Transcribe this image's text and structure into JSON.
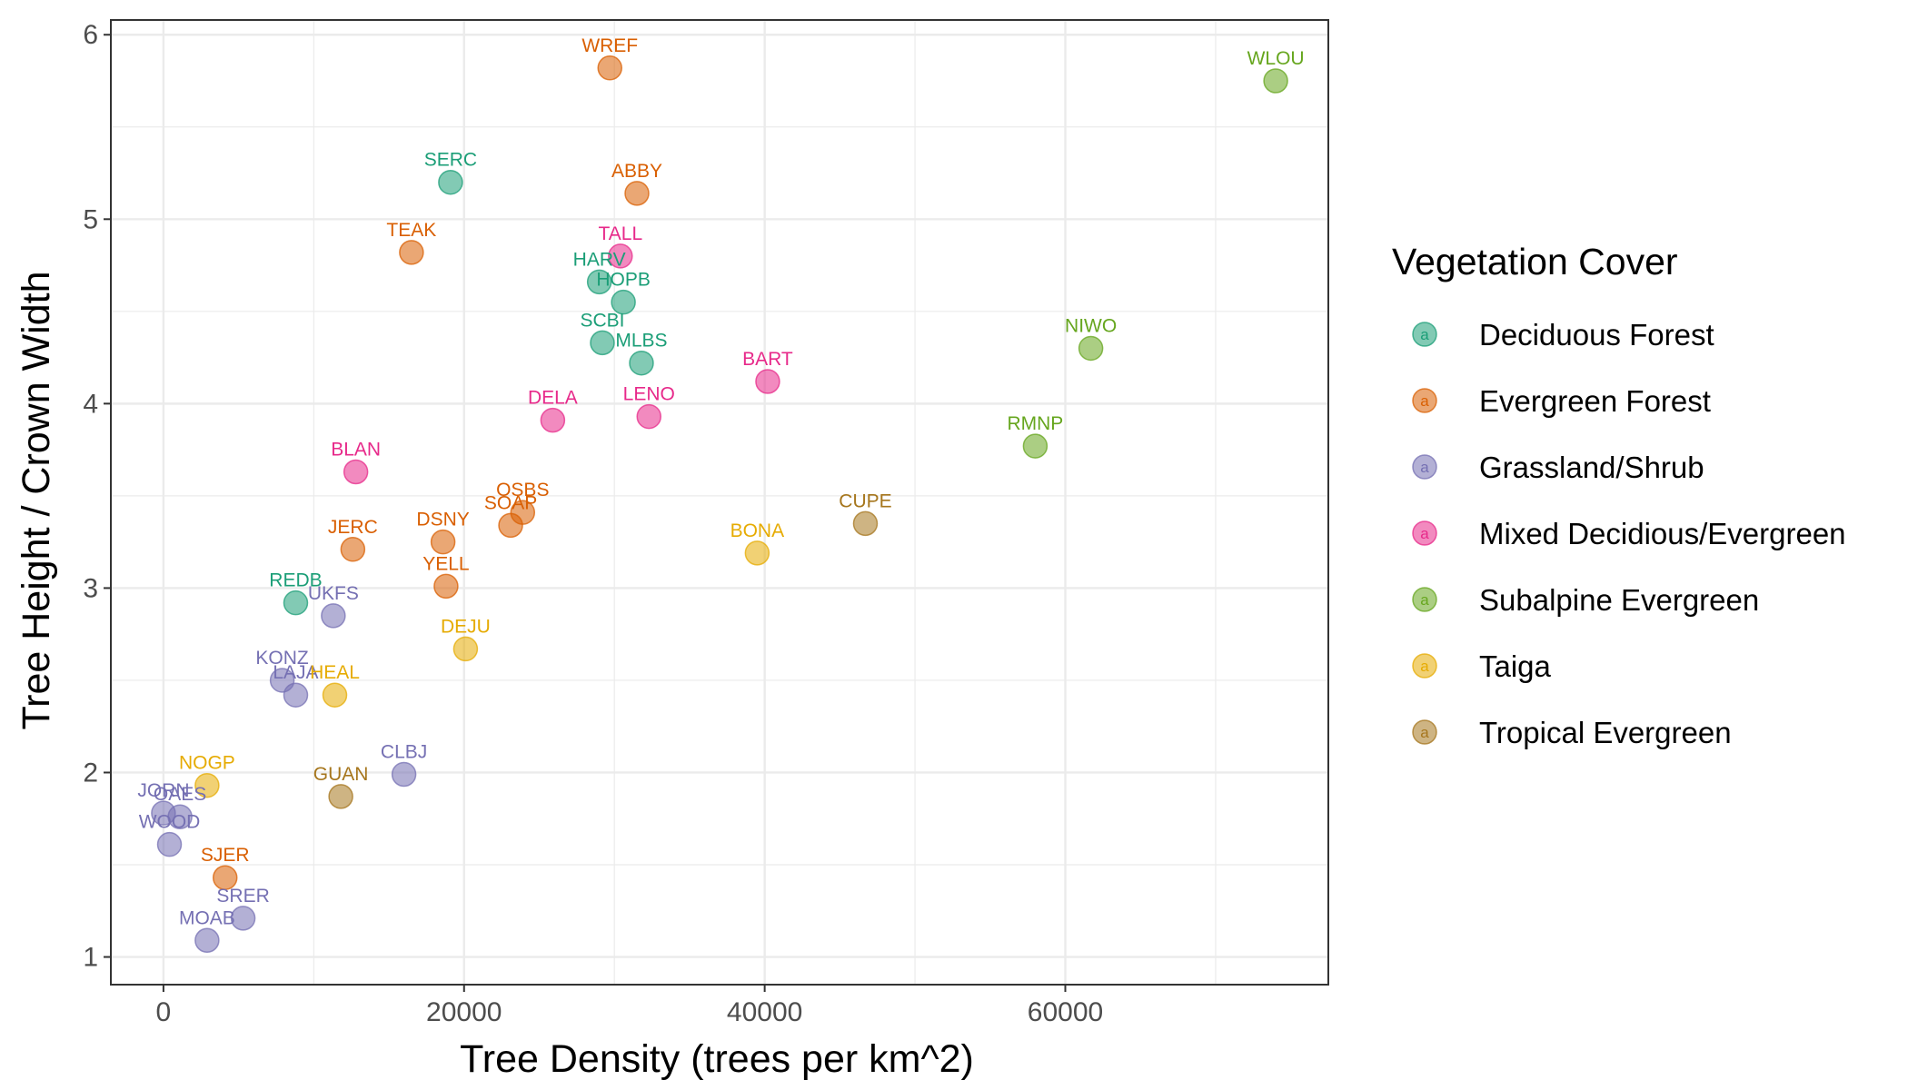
{
  "chart_data": {
    "type": "scatter",
    "xlabel": "Tree Density (trees per km^2)",
    "ylabel": "Tree Height / Crown Width",
    "xlim": [
      -3500,
      77500
    ],
    "ylim": [
      0.85,
      6.08
    ],
    "x_ticks": [
      0,
      20000,
      40000,
      60000
    ],
    "x_tick_labels": [
      "0",
      "20000",
      "40000",
      "60000"
    ],
    "y_ticks": [
      1,
      2,
      3,
      4,
      5,
      6
    ],
    "y_tick_labels": [
      "1",
      "2",
      "3",
      "4",
      "5",
      "6"
    ],
    "grid": true,
    "legend": {
      "title": "Vegetation Cover",
      "placement": "right",
      "key_glyph": "a"
    },
    "series": [
      {
        "name": "Deciduous Forest",
        "color": "#1B9E77",
        "points": [
          {
            "label": "SERC",
            "x": 19100,
            "y": 5.2
          },
          {
            "label": "HARV",
            "x": 29000,
            "y": 4.66
          },
          {
            "label": "HOPB",
            "x": 30600,
            "y": 4.55
          },
          {
            "label": "SCBI",
            "x": 29200,
            "y": 4.33
          },
          {
            "label": "MLBS",
            "x": 31800,
            "y": 4.22
          },
          {
            "label": "REDB",
            "x": 8800,
            "y": 2.92
          }
        ]
      },
      {
        "name": "Evergreen Forest",
        "color": "#D95F02",
        "points": [
          {
            "label": "WREF",
            "x": 29700,
            "y": 5.82
          },
          {
            "label": "ABBY",
            "x": 31500,
            "y": 5.14
          },
          {
            "label": "TEAK",
            "x": 16500,
            "y": 4.82
          },
          {
            "label": "OSBS",
            "x": 23900,
            "y": 3.41
          },
          {
            "label": "SOAP",
            "x": 23100,
            "y": 3.34
          },
          {
            "label": "DSNY",
            "x": 18600,
            "y": 3.25
          },
          {
            "label": "JERC",
            "x": 12600,
            "y": 3.21
          },
          {
            "label": "YELL",
            "x": 18800,
            "y": 3.01
          },
          {
            "label": "SJER",
            "x": 4100,
            "y": 1.43
          }
        ]
      },
      {
        "name": "Grassland/Shrub",
        "color": "#7570B3",
        "points": [
          {
            "label": "UKFS",
            "x": 11300,
            "y": 2.85
          },
          {
            "label": "KONZ",
            "x": 7900,
            "y": 2.5
          },
          {
            "label": "LAJA",
            "x": 8800,
            "y": 2.42
          },
          {
            "label": "CLBJ",
            "x": 16000,
            "y": 1.99
          },
          {
            "label": "JORN",
            "x": 0,
            "y": 1.78
          },
          {
            "label": "OAES",
            "x": 1100,
            "y": 1.76
          },
          {
            "label": "WOOD",
            "x": 400,
            "y": 1.61
          },
          {
            "label": "SRER",
            "x": 5300,
            "y": 1.21
          },
          {
            "label": "MOAB",
            "x": 2900,
            "y": 1.09
          }
        ]
      },
      {
        "name": "Mixed Decidious/Evergreen",
        "color": "#E7298A",
        "points": [
          {
            "label": "TALL",
            "x": 30400,
            "y": 4.8
          },
          {
            "label": "BART",
            "x": 40200,
            "y": 4.12
          },
          {
            "label": "DELA",
            "x": 25900,
            "y": 3.91
          },
          {
            "label": "LENO",
            "x": 32300,
            "y": 3.93
          },
          {
            "label": "BLAN",
            "x": 12800,
            "y": 3.63
          }
        ]
      },
      {
        "name": "Subalpine Evergreen",
        "color": "#66A61E",
        "points": [
          {
            "label": "WLOU",
            "x": 74000,
            "y": 5.75
          },
          {
            "label": "NIWO",
            "x": 61700,
            "y": 4.3
          },
          {
            "label": "RMNP",
            "x": 58000,
            "y": 3.77
          }
        ]
      },
      {
        "name": "Taiga",
        "color": "#E6AB02",
        "points": [
          {
            "label": "BONA",
            "x": 39500,
            "y": 3.19
          },
          {
            "label": "DEJU",
            "x": 20100,
            "y": 2.67
          },
          {
            "label": "HEAL",
            "x": 11400,
            "y": 2.42
          },
          {
            "label": "NOGP",
            "x": 2900,
            "y": 1.93
          }
        ]
      },
      {
        "name": "Tropical Evergreen",
        "color": "#A6761D",
        "points": [
          {
            "label": "CUPE",
            "x": 46700,
            "y": 3.35
          },
          {
            "label": "GUAN",
            "x": 11800,
            "y": 1.87
          }
        ]
      }
    ]
  }
}
